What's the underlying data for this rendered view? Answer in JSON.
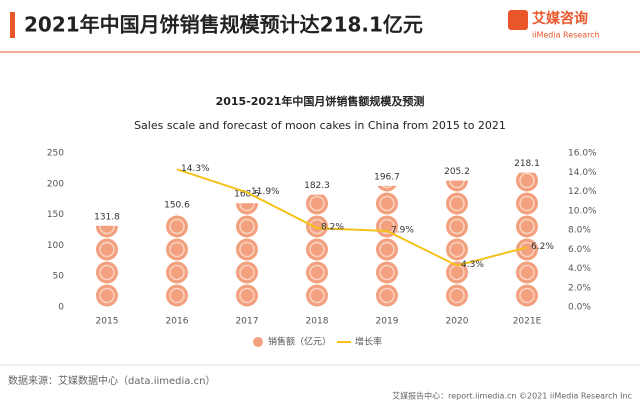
{
  "header": {
    "title": "2021年中国月饼销售规模预计达218.1亿元",
    "logo_cn": "艾媒咨询",
    "logo_en": "iiMedia Research"
  },
  "chart_data": {
    "type": "bar",
    "title": "2015-2021年中国月饼销售额规模及预测",
    "subtitle": "Sales scale and forecast of moon cakes in China from 2015 to 2021",
    "categories": [
      "2015",
      "2016",
      "2017",
      "2018",
      "2019",
      "2020",
      "2021E"
    ],
    "series": [
      {
        "name": "销售额（亿元）",
        "type": "bar",
        "color": "#f2a07e",
        "values": [
          131.8,
          150.6,
          168.5,
          182.3,
          196.7,
          205.2,
          218.1
        ]
      },
      {
        "name": "增长率",
        "type": "line",
        "axis": "y2",
        "color": "#f5c21b",
        "values": [
          null,
          14.3,
          11.9,
          8.2,
          7.9,
          4.3,
          6.2
        ],
        "value_labels": [
          null,
          "14.3%",
          "11.9%",
          "8.2%",
          "7.9%",
          "4.3%",
          "6.2%"
        ]
      }
    ],
    "ylim": [
      0,
      250
    ],
    "yticks": [
      0,
      50,
      100,
      150,
      200,
      250
    ],
    "y2lim": [
      0,
      16
    ],
    "y2ticks": [
      {
        "value": 0,
        "label": "0.0%"
      },
      {
        "value": 2,
        "label": "2.0%"
      },
      {
        "value": 4,
        "label": "4.0%"
      },
      {
        "value": 6,
        "label": "6.0%"
      },
      {
        "value": 8,
        "label": "8.0%"
      },
      {
        "value": 10,
        "label": "10.0%"
      },
      {
        "value": 12,
        "label": "12.0%"
      },
      {
        "value": 14,
        "label": "14.0%"
      },
      {
        "value": 16,
        "label": "16.0%"
      }
    ]
  },
  "footer": {
    "source": "数据来源：艾媒数据中心（data.iimedia.cn）",
    "right": "艾媒报告中心：report.iimedia.cn  ©2021  iiMedia Research Inc"
  }
}
